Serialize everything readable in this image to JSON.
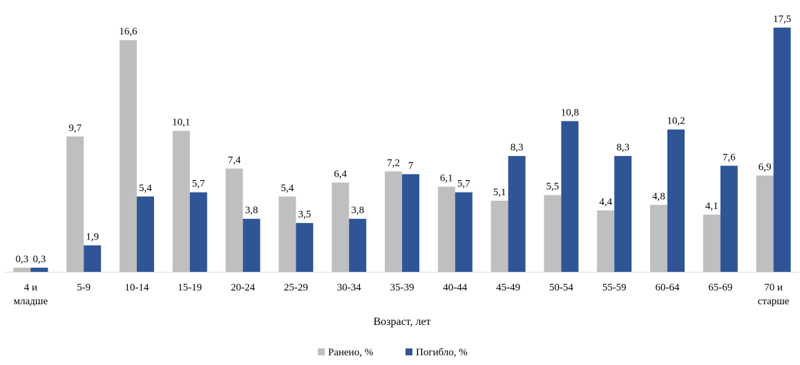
{
  "chart_data": {
    "type": "bar",
    "title": "",
    "xlabel": "Возраст, лет",
    "ylabel": "",
    "ylim": [
      0,
      17.5
    ],
    "grid": false,
    "legend_position": "bottom",
    "categories": [
      [
        "4 и",
        "младше"
      ],
      [
        "5-9"
      ],
      [
        "10-14"
      ],
      [
        "15-19"
      ],
      [
        "20-24"
      ],
      [
        "25-29"
      ],
      [
        "30-34"
      ],
      [
        "35-39"
      ],
      [
        "40-44"
      ],
      [
        "45-49"
      ],
      [
        "50-54"
      ],
      [
        "55-59"
      ],
      [
        "60-64"
      ],
      [
        "65-69"
      ],
      [
        "70 и",
        "старше"
      ]
    ],
    "series": [
      {
        "name": "Ранено, %",
        "color": "#bfbfbf",
        "values": [
          0.3,
          9.7,
          16.6,
          10.1,
          7.4,
          5.4,
          6.4,
          7.2,
          6.1,
          5.1,
          5.5,
          4.4,
          4.8,
          4.1,
          6.9
        ],
        "labels": [
          "0,3",
          "9,7",
          "16,6",
          "10,1",
          "7,4",
          "5,4",
          "6,4",
          "7,2",
          "6,1",
          "5,1",
          "5,5",
          "4,4",
          "4,8",
          "4,1",
          "6,9"
        ]
      },
      {
        "name": "Погибло, %",
        "color": "#2f5597",
        "values": [
          0.3,
          1.9,
          5.4,
          5.7,
          3.8,
          3.5,
          3.8,
          7,
          5.7,
          8.3,
          10.8,
          8.3,
          10.2,
          7.6,
          17.5
        ],
        "labels": [
          "0,3",
          "1,9",
          "5,4",
          "5,7",
          "3,8",
          "3,5",
          "3,8",
          "7",
          "5,7",
          "8,3",
          "10,8",
          "8,3",
          "10,2",
          "7,6",
          "17,5"
        ]
      }
    ]
  }
}
